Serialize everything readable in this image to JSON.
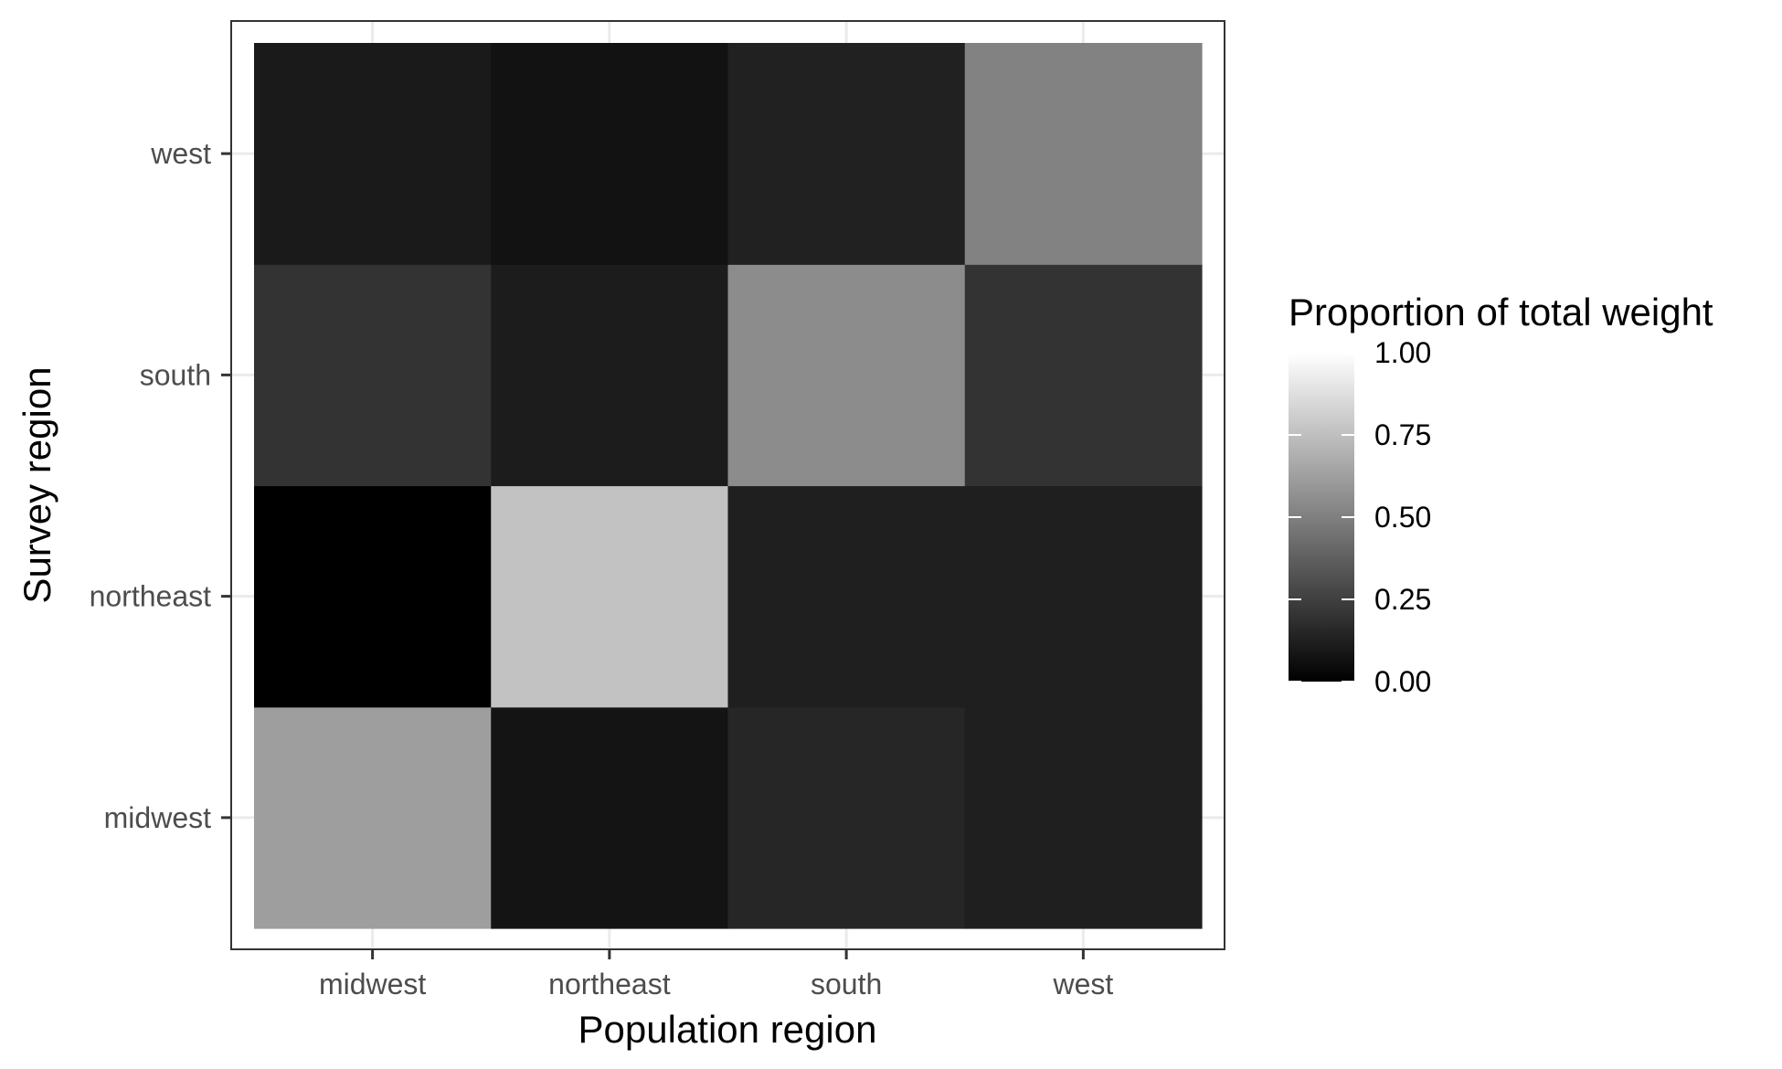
{
  "chart_data": {
    "type": "heatmap",
    "xlabel": "Population region",
    "ylabel": "Survey region",
    "x_categories": [
      "midwest",
      "northeast",
      "south",
      "west"
    ],
    "y_categories": [
      "midwest",
      "northeast",
      "south",
      "west"
    ],
    "values": [
      [
        0.62,
        0.08,
        0.15,
        0.12
      ],
      [
        0.0,
        0.76,
        0.12,
        0.12
      ],
      [
        0.2,
        0.11,
        0.55,
        0.2
      ],
      [
        0.1,
        0.07,
        0.13,
        0.51
      ]
    ],
    "values_layout": "rows follow y_categories, columns follow x_categories",
    "color_scale": {
      "low": "#000000",
      "high": "#ffffff",
      "min": 0,
      "max": 1
    },
    "legend": {
      "title": "Proportion of total weight",
      "breaks": [
        "0.00",
        "0.25",
        "0.50",
        "0.75",
        "1.00"
      ],
      "position": "right"
    },
    "grid": true
  }
}
